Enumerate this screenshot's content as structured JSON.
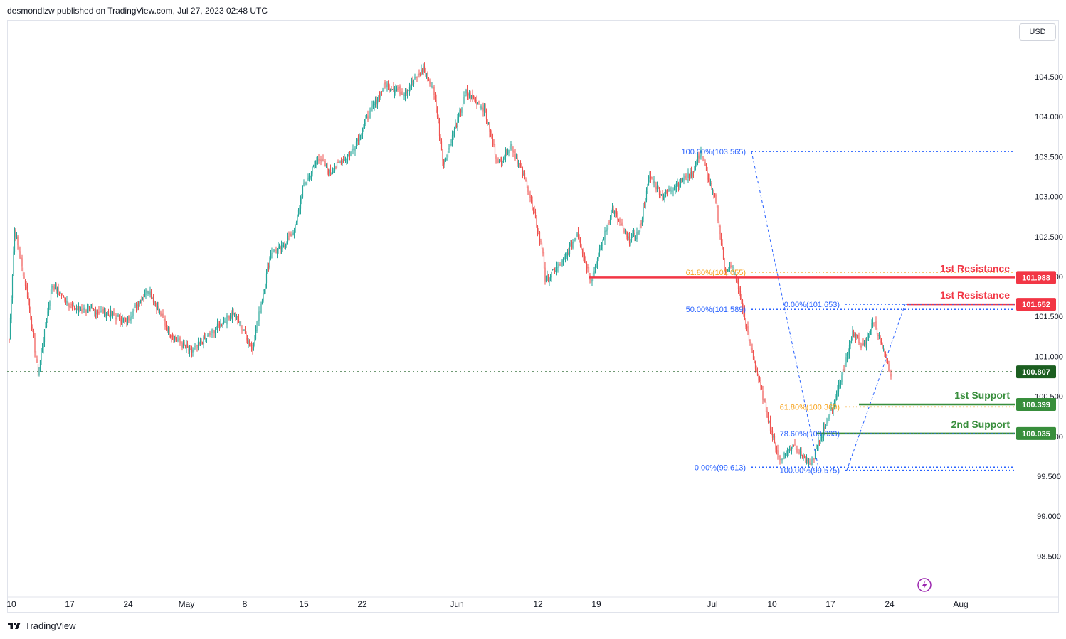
{
  "header": {
    "publisher": "desmondlzw published on TradingView.com, Jul 27, 2023 02:48 UTC"
  },
  "currency_button": "USD",
  "footer": {
    "brand": "TradingView",
    "logo_icon": "tradingview-logo-icon"
  },
  "colors": {
    "up": "#26a69a",
    "down": "#ef5350",
    "resistance": "#f23645",
    "support": "#388e3c",
    "fib_blue": "#2962ff",
    "fib_orange": "#f7a21b",
    "current_dotted": "#1b5e20"
  },
  "chart_data": {
    "type": "candlestick",
    "symbol": "USD",
    "ylim": [
      98.2,
      104.95
    ],
    "y_ticks": [
      98.5,
      99.0,
      99.5,
      100.0,
      100.5,
      101.0,
      101.5,
      102.0,
      102.5,
      103.0,
      103.5,
      104.0,
      104.5
    ],
    "y_tick_labels": [
      "98.500",
      "99.000",
      "99.500",
      "100.000",
      "100.500",
      "101.000",
      "101.500",
      "102.000",
      "102.500",
      "103.000",
      "103.500",
      "104.000",
      "104.500"
    ],
    "x_ticks": [
      "10",
      "17",
      "24",
      "May",
      "8",
      "15",
      "22",
      "Jun",
      "12",
      "19",
      "Jul",
      "10",
      "17",
      "24",
      "Aug"
    ],
    "price_path": [
      [
        0,
        101.2
      ],
      [
        5,
        102.6
      ],
      [
        18,
        101.7
      ],
      [
        27,
        100.78
      ],
      [
        40,
        101.9
      ],
      [
        60,
        101.6
      ],
      [
        90,
        101.55
      ],
      [
        110,
        101.45
      ],
      [
        130,
        101.85
      ],
      [
        150,
        101.3
      ],
      [
        170,
        101.05
      ],
      [
        190,
        101.3
      ],
      [
        210,
        101.55
      ],
      [
        228,
        101.1
      ],
      [
        245,
        102.3
      ],
      [
        255,
        102.35
      ],
      [
        268,
        102.6
      ],
      [
        275,
        103.1
      ],
      [
        290,
        103.5
      ],
      [
        300,
        103.3
      ],
      [
        320,
        103.55
      ],
      [
        340,
        104.1
      ],
      [
        352,
        104.4
      ],
      [
        370,
        104.3
      ],
      [
        388,
        104.6
      ],
      [
        398,
        104.3
      ],
      [
        407,
        103.4
      ],
      [
        428,
        104.3
      ],
      [
        445,
        104.1
      ],
      [
        458,
        103.4
      ],
      [
        470,
        103.65
      ],
      [
        485,
        103.15
      ],
      [
        500,
        102.3
      ],
      [
        502,
        101.95
      ],
      [
        520,
        102.2
      ],
      [
        532,
        102.55
      ],
      [
        545,
        101.95
      ],
      [
        565,
        102.85
      ],
      [
        580,
        102.45
      ],
      [
        590,
        102.55
      ],
      [
        600,
        103.25
      ],
      [
        612,
        103.0
      ],
      [
        625,
        103.15
      ],
      [
        640,
        103.3
      ],
      [
        648,
        103.58
      ],
      [
        655,
        103.2
      ],
      [
        662,
        102.95
      ],
      [
        670,
        102.1
      ],
      [
        678,
        102.1
      ],
      [
        685,
        101.75
      ],
      [
        693,
        101.2
      ],
      [
        705,
        100.55
      ],
      [
        715,
        100.0
      ],
      [
        722,
        99.7
      ],
      [
        735,
        99.9
      ],
      [
        750,
        99.62
      ],
      [
        762,
        100.05
      ],
      [
        772,
        100.4
      ],
      [
        782,
        100.85
      ],
      [
        790,
        101.3
      ],
      [
        800,
        101.1
      ],
      [
        810,
        101.45
      ],
      [
        818,
        101.1
      ],
      [
        826,
        100.75
      ]
    ],
    "current_price": 100.807,
    "price_labels": [
      {
        "text": "101.988",
        "value": 101.988,
        "color": "#f23645"
      },
      {
        "text": "101.652",
        "value": 101.652,
        "color": "#f23645"
      },
      {
        "text": "100.807",
        "value": 100.807,
        "color": "#1b5e20"
      },
      {
        "text": "100.399",
        "value": 100.399,
        "color": "#388e3c"
      },
      {
        "text": "100.035",
        "value": 100.035,
        "color": "#388e3c"
      }
    ],
    "levels": [
      {
        "label": "1st Resistance",
        "value": 101.988,
        "type": "resistance"
      },
      {
        "label": "1st Resistance",
        "value": 101.652,
        "type": "resistance"
      },
      {
        "label": "1st Support",
        "value": 100.399,
        "type": "support"
      },
      {
        "label": "2nd Support",
        "value": 100.035,
        "type": "support"
      }
    ],
    "fib_annotations": [
      {
        "text": "100.00%(103.565)",
        "value": 103.565,
        "color": "#2962ff"
      },
      {
        "text": "61.80%(102.055)",
        "value": 102.055,
        "color": "#f7a21b"
      },
      {
        "text": "50.00%(101.589)",
        "value": 101.589,
        "color": "#2962ff"
      },
      {
        "text": "0.00%(101.653)",
        "value": 101.653,
        "color": "#2962ff"
      },
      {
        "text": "61.80%(100.369)",
        "value": 100.369,
        "color": "#f7a21b"
      },
      {
        "text": "78.60%(100.033)",
        "value": 100.033,
        "color": "#2962ff"
      },
      {
        "text": "0.00%(99.613)",
        "value": 99.613,
        "color": "#2962ff"
      },
      {
        "text": "100.00%(99.575)",
        "value": 99.575,
        "color": "#2962ff"
      }
    ],
    "icons": [
      "lightning-icon"
    ]
  }
}
